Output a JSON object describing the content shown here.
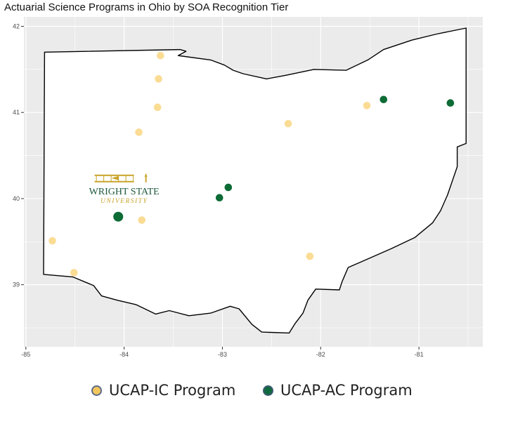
{
  "chart_data": {
    "type": "scatter",
    "title": "Actuarial Science Programs in Ohio by SOA Recognition Tier",
    "xlabel": "",
    "ylabel": "",
    "xlim": [
      -85.02,
      -80.35
    ],
    "ylim": [
      38.28,
      42.11
    ],
    "x_ticks": [
      -85,
      -84,
      -83,
      -82,
      -81
    ],
    "y_ticks": [
      39,
      40,
      41,
      42
    ],
    "grid": true,
    "series": [
      {
        "name": "UCAP-IC Program",
        "color": "#fbdc94",
        "points": [
          {
            "x": -83.63,
            "y": 41.66
          },
          {
            "x": -83.65,
            "y": 41.39
          },
          {
            "x": -83.66,
            "y": 41.06
          },
          {
            "x": -83.85,
            "y": 40.77
          },
          {
            "x": -82.33,
            "y": 40.87
          },
          {
            "x": -81.53,
            "y": 41.08
          },
          {
            "x": -83.82,
            "y": 39.75
          },
          {
            "x": -84.73,
            "y": 39.51
          },
          {
            "x": -84.51,
            "y": 39.14
          },
          {
            "x": -82.11,
            "y": 39.33
          }
        ]
      },
      {
        "name": "UCAP-AC Program",
        "color": "#0d6b35",
        "points": [
          {
            "x": -81.36,
            "y": 41.15
          },
          {
            "x": -80.68,
            "y": 41.11
          },
          {
            "x": -82.94,
            "y": 40.13
          },
          {
            "x": -83.03,
            "y": 40.01
          },
          {
            "x": -84.06,
            "y": 39.79,
            "highlight": true
          }
        ]
      }
    ],
    "outline_name": "Ohio",
    "outline": [
      [
        -84.81,
        41.7
      ],
      [
        -83.43,
        41.73
      ],
      [
        -83.37,
        41.71
      ],
      [
        -83.45,
        41.66
      ],
      [
        -83.12,
        41.61
      ],
      [
        -82.98,
        41.55
      ],
      [
        -82.89,
        41.49
      ],
      [
        -82.79,
        41.45
      ],
      [
        -82.55,
        41.39
      ],
      [
        -82.36,
        41.43
      ],
      [
        -82.07,
        41.5
      ],
      [
        -81.74,
        41.49
      ],
      [
        -81.52,
        41.61
      ],
      [
        -81.36,
        41.73
      ],
      [
        -81.07,
        41.84
      ],
      [
        -80.82,
        41.91
      ],
      [
        -80.52,
        41.98
      ],
      [
        -80.52,
        40.64
      ],
      [
        -80.61,
        40.6
      ],
      [
        -80.61,
        40.37
      ],
      [
        -80.71,
        40.04
      ],
      [
        -80.78,
        39.86
      ],
      [
        -80.86,
        39.72
      ],
      [
        -81.04,
        39.55
      ],
      [
        -81.28,
        39.42
      ],
      [
        -81.54,
        39.29
      ],
      [
        -81.72,
        39.2
      ],
      [
        -81.78,
        39.04
      ],
      [
        -81.81,
        38.94
      ],
      [
        -82.05,
        38.95
      ],
      [
        -82.13,
        38.82
      ],
      [
        -82.18,
        38.67
      ],
      [
        -82.26,
        38.55
      ],
      [
        -82.32,
        38.44
      ],
      [
        -82.6,
        38.45
      ],
      [
        -82.7,
        38.54
      ],
      [
        -82.83,
        38.72
      ],
      [
        -82.92,
        38.75
      ],
      [
        -83.12,
        38.67
      ],
      [
        -83.34,
        38.64
      ],
      [
        -83.54,
        38.7
      ],
      [
        -83.68,
        38.66
      ],
      [
        -83.88,
        38.77
      ],
      [
        -84.07,
        38.82
      ],
      [
        -84.23,
        38.87
      ],
      [
        -84.31,
        38.99
      ],
      [
        -84.52,
        39.09
      ],
      [
        -84.82,
        39.12
      ],
      [
        -84.81,
        41.7
      ]
    ],
    "annotation_logo": {
      "line1": "WRIGHT STATE",
      "line2": "UNIVERSITY",
      "x": -84.0,
      "y": 40.05
    }
  },
  "legend": {
    "ic_label": "UCAP-IC Program",
    "ac_label": "UCAP-AC Program"
  },
  "colors": {
    "panel_bg": "#ebebeb",
    "grid": "#ffffff",
    "state_fill": "#ffffff",
    "state_stroke": "#000000",
    "logo_gold": "#c9a32a",
    "logo_green": "#1f5b3e"
  }
}
